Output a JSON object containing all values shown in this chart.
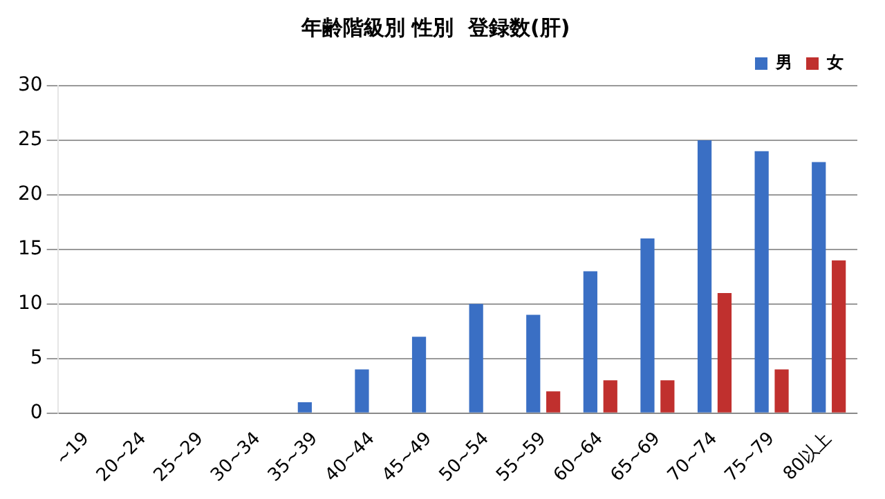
{
  "chart_data": {
    "type": "bar",
    "title": "年齢階級別 性別  登録数(肝)",
    "categories": [
      "~19",
      "20~24",
      "25~29",
      "30~34",
      "35~39",
      "40~44",
      "45~49",
      "50~54",
      "55~59",
      "60~64",
      "65~69",
      "70~74",
      "75~79",
      "80以上"
    ],
    "series": [
      {
        "name": "男",
        "color": "#3a6fc4",
        "values": [
          0,
          0,
          0,
          0,
          1,
          4,
          7,
          10,
          9,
          13,
          16,
          25,
          24,
          23
        ]
      },
      {
        "name": "女",
        "color": "#c0302e",
        "values": [
          0,
          0,
          0,
          0,
          0,
          0,
          0,
          0,
          2,
          3,
          3,
          11,
          4,
          14
        ]
      }
    ],
    "ylim": [
      0,
      30
    ],
    "yticks": [
      0,
      5,
      10,
      15,
      20,
      25,
      30
    ],
    "grid": "y",
    "legend": "top right"
  }
}
